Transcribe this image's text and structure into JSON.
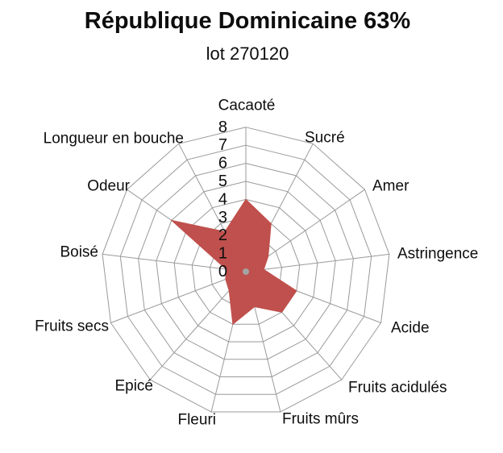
{
  "chart_data": {
    "type": "radar",
    "title": "République Dominicaine 63%",
    "subtitle": "lot 270120",
    "categories": [
      "Cacaoté",
      "Sucré",
      "Amer",
      "Astringence",
      "Acide",
      "Fruits acidulés",
      "Fruits mûrs",
      "Fleuri",
      "Epicé",
      "Fruits secs",
      "Boisé",
      "Odeur",
      "Longueur en bouche"
    ],
    "values": [
      4,
      3,
      1.5,
      1,
      3,
      3,
      2,
      3,
      1.4,
      1.2,
      1.1,
      5,
      2.5
    ],
    "ticks": [
      0,
      1,
      2,
      3,
      4,
      5,
      6,
      7,
      8
    ],
    "axis_range": [
      0,
      8
    ],
    "grid": true,
    "legend": false,
    "fill_color": "#C0504D",
    "grid_color": "#9a9a9a",
    "hub_color": "#a3a3a3",
    "text_color": "#0d0d0d"
  }
}
